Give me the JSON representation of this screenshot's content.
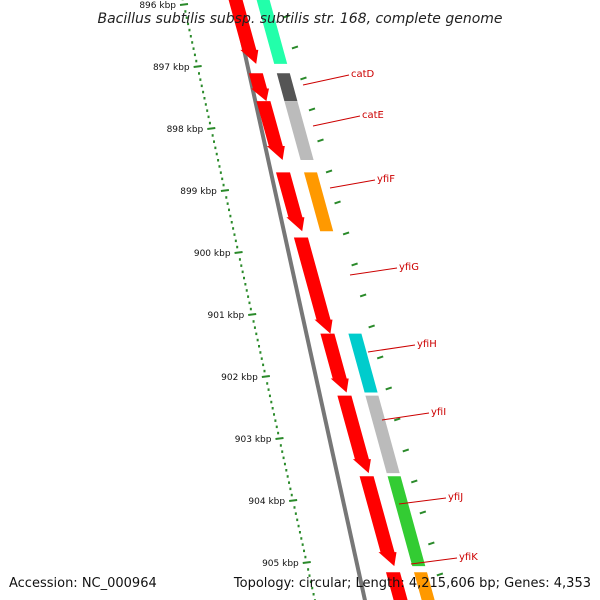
{
  "title": "Bacillus subtilis subsp. subtilis str. 168, complete genome",
  "footer": {
    "accession": "Accession: NC_000964",
    "summary": "Topology: circular; Length: 4,215,606 bp; Genes: 4,353"
  },
  "colors": {
    "backbone": "#777777",
    "gene_forward": "#ff0000",
    "tick": "#2a8a2a",
    "label": "#cc0000",
    "cog_teal": "#22ffaa",
    "cog_dark_gray": "#555555",
    "cog_light_gray": "#bbbbbb",
    "cog_orange": "#ff9900",
    "cog_cyan": "#00cccc",
    "cog_green": "#33cc33"
  },
  "scale_labels": [
    "896 kbp",
    "897 kbp",
    "898 kbp",
    "899 kbp",
    "900 kbp",
    "901 kbp",
    "902 kbp",
    "903 kbp",
    "904 kbp",
    "905 kbp"
  ],
  "gene_labels": [
    "catD",
    "catE",
    "yfiF",
    "yfiG",
    "yfiH",
    "yfiI",
    "yfiJ",
    "yfiK"
  ],
  "genes": [
    {
      "start": 895.6,
      "end": 896.95,
      "cog_color": "#22ffaa"
    },
    {
      "start": 897.1,
      "end": 897.55,
      "cog_color": "#555555"
    },
    {
      "start": 897.55,
      "end": 898.5,
      "cog_color": "#bbbbbb"
    },
    {
      "start": 898.7,
      "end": 899.65,
      "cog_color": "#ff9900"
    },
    {
      "start": 899.75,
      "end": 901.3,
      "cog_color": null
    },
    {
      "start": 901.3,
      "end": 902.25,
      "cog_color": "#00cccc"
    },
    {
      "start": 902.3,
      "end": 903.55,
      "cog_color": "#bbbbbb"
    },
    {
      "start": 903.6,
      "end": 905.05,
      "cog_color": "#33cc33"
    },
    {
      "start": 905.15,
      "end": 905.9,
      "cog_color": "#ff9900"
    }
  ]
}
